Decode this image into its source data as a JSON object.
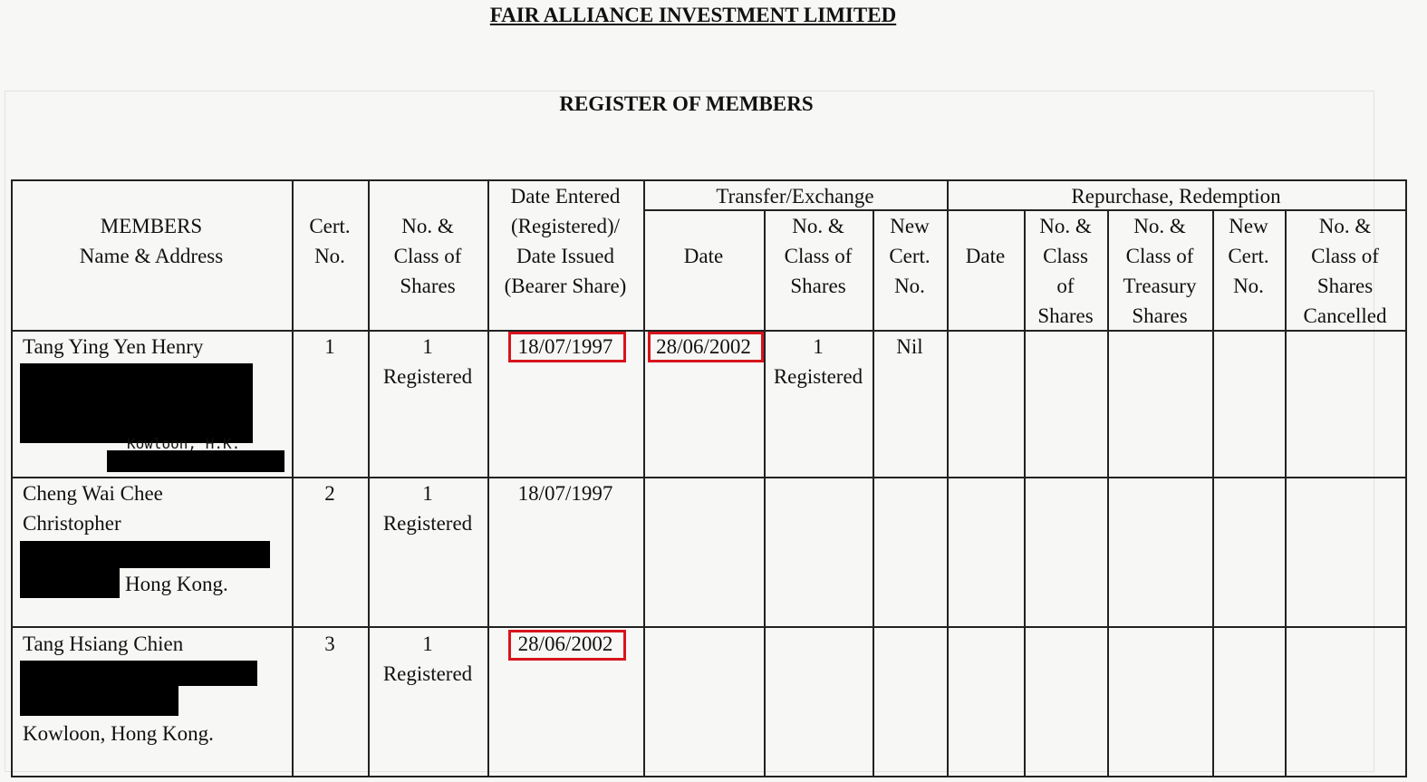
{
  "document": {
    "company": "FAIR ALLIANCE INVESTMENT LIMITED",
    "title": "REGISTER OF MEMBERS"
  },
  "headers": {
    "members": "MEMBERS\nName & Address",
    "cert_no": "Cert.\nNo.",
    "class": "No. &\nClass of\nShares",
    "date_entered": "Date Entered\n(Registered)/\nDate Issued\n(Bearer Share)",
    "transfer_group": "Transfer/Exchange",
    "t_date": "Date",
    "t_class": "No. &\nClass of\nShares",
    "t_cert": "New\nCert.\nNo.",
    "repurchase_group": "Repurchase, Redemption",
    "r_date": "Date",
    "r_class": "No. &\nClass\nof\nShares",
    "r_treasury": "No. &\nClass of\nTreasury\nShares",
    "r_cert": "New\nCert.\nNo.",
    "r_cancelled": "No. &\nClass of\nShares\nCancelled"
  },
  "rows": [
    {
      "name": "Tang Ying Yen Henry",
      "address_visible": "Kowloon, H.K.",
      "cert": "1",
      "shares": "1\nRegistered",
      "date_entered": "18/07/1997",
      "transfer_date": "28/06/2002",
      "transfer_shares": "1\nRegistered",
      "new_cert": "Nil"
    },
    {
      "name": "Cheng Wai Chee\nChristopher",
      "address_visible": "Hong Kong.",
      "cert": "2",
      "shares": "1\nRegistered",
      "date_entered": "18/07/1997"
    },
    {
      "name": "Tang Hsiang Chien",
      "address_visible": "Kowloon, Hong Kong.",
      "cert": "3",
      "shares": "1\nRegistered",
      "date_entered": "28/06/2002"
    }
  ],
  "colors": {
    "highlight": "#d8141c",
    "redaction": "#000000"
  }
}
